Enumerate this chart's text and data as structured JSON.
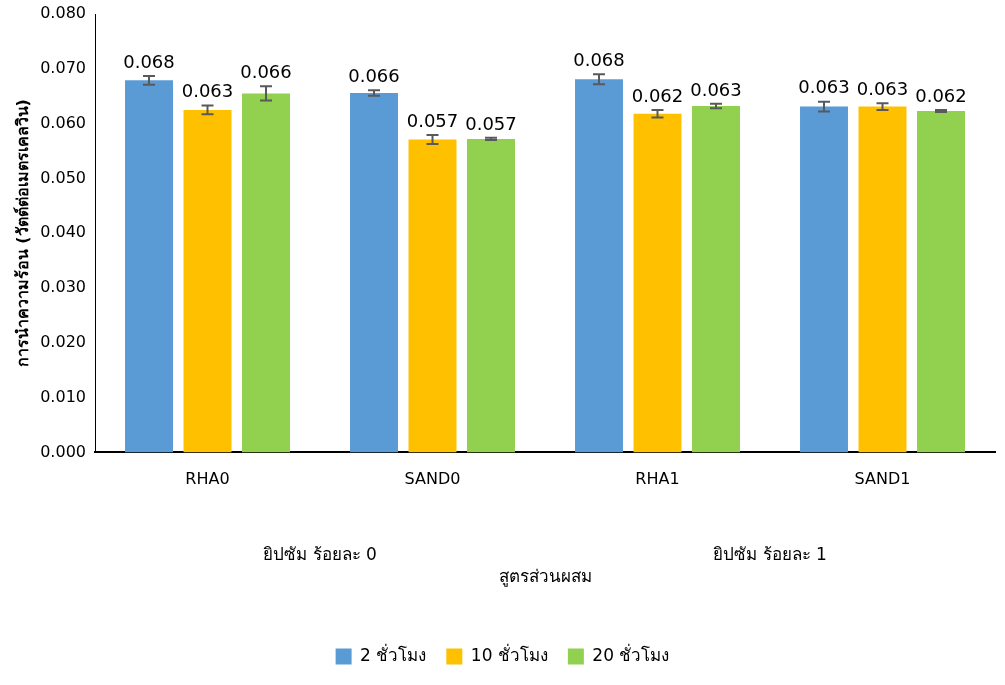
{
  "chart_data": {
    "type": "bar",
    "xlabel": "สูตรส่วนผสม",
    "ylabel": "การนำความร้อน (วัตต์ต่อเมตรเคลวิน)",
    "categories": [
      "RHA0",
      "SAND0",
      "RHA1",
      "SAND1"
    ],
    "annotations": [
      "ยิปซัม ร้อยละ 0",
      "ยิปซัม ร้อยละ 1"
    ],
    "series": [
      {
        "name": "2 ชั่วโมง",
        "color": "#5b9bd5",
        "values": [
          0.0679,
          0.0656,
          0.0681,
          0.0631
        ],
        "errors": [
          0.0008,
          0.0005,
          0.0009,
          0.0009
        ],
        "value_labels": [
          "0.068",
          "0.066",
          "0.068",
          "0.063"
        ]
      },
      {
        "name": "10 ชั่วโมง",
        "color": "#ffc000",
        "values": [
          0.0625,
          0.0571,
          0.0618,
          0.0631
        ],
        "errors": [
          0.0008,
          0.0008,
          0.0007,
          0.0006
        ],
        "value_labels": [
          "0.063",
          "0.057",
          "0.062",
          "0.063"
        ]
      },
      {
        "name": "20 ชั่วโมง",
        "color": "#92d050",
        "values": [
          0.0655,
          0.0572,
          0.0632,
          0.0623
        ],
        "errors": [
          0.0013,
          0.0002,
          0.0004,
          0.0002
        ],
        "value_labels": [
          "0.066",
          "0.057",
          "0.063",
          "0.062"
        ]
      }
    ],
    "ylim": [
      0,
      0.08
    ],
    "yticks": [
      {
        "value": 0,
        "label": "0.000"
      },
      {
        "value": 0.01,
        "label": "0.010"
      },
      {
        "value": 0.02,
        "label": "0.020"
      },
      {
        "value": 0.03,
        "label": "0.030"
      },
      {
        "value": 0.04,
        "label": "0.040"
      },
      {
        "value": 0.05,
        "label": "0.050"
      },
      {
        "value": 0.06,
        "label": "0.060"
      },
      {
        "value": 0.07,
        "label": "0.070"
      },
      {
        "value": 0.08,
        "label": "0.080"
      }
    ],
    "grid": false,
    "legend": "bottom"
  }
}
